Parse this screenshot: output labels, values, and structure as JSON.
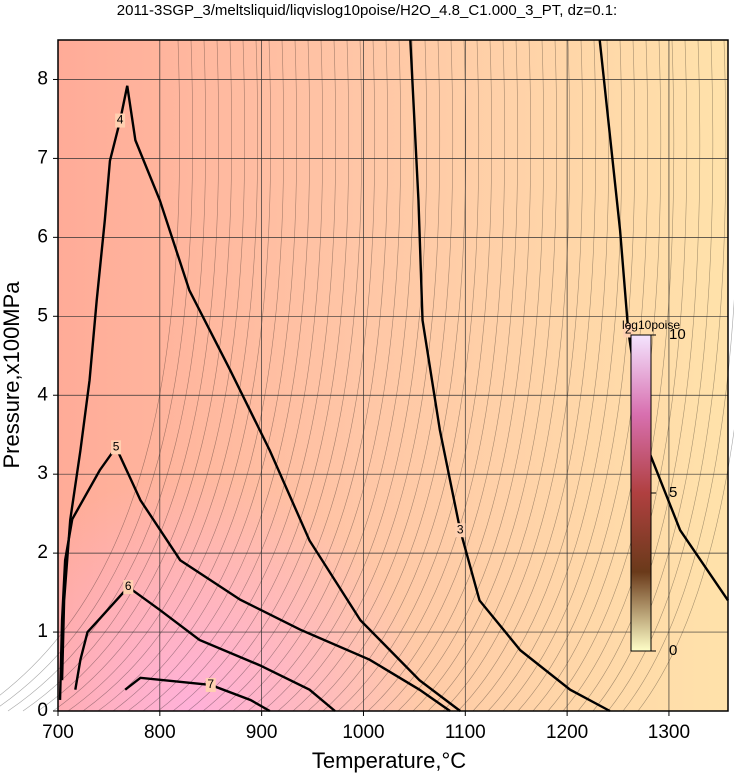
{
  "chart_data": {
    "type": "contour",
    "title": "2011-3SGP_3/meltsliquid/liqvislog10poise/H2O_4.8_C1.000_3_PT, dz=0.1:",
    "xlabel": "Temperature,°C",
    "ylabel": "Pressure,x100MPa",
    "xlim": [
      700,
      1358
    ],
    "ylim": [
      0,
      8.5
    ],
    "xticks": [
      700,
      800,
      900,
      1000,
      1100,
      1200,
      1300
    ],
    "yticks": [
      0,
      1,
      2,
      3,
      4,
      5,
      6,
      7,
      8
    ],
    "grid": true,
    "line_color": "#000000",
    "contours": [
      {
        "level": 2,
        "x": [
          1232,
          1252,
          1260,
          1276,
          1311,
          1358
        ],
        "y": [
          8.5,
          6.09,
          4.82,
          3.43,
          2.29,
          1.4
        ]
      },
      {
        "level": 3,
        "x": [
          1046,
          1054,
          1058,
          1075,
          1095,
          1114,
          1154,
          1203,
          1242
        ],
        "y": [
          8.5,
          6.47,
          4.95,
          3.56,
          2.29,
          1.4,
          0.77,
          0.27,
          0
        ]
      },
      {
        "level": 4,
        "x": [
          704,
          706,
          712,
          722,
          731,
          738,
          746,
          751,
          761,
          768,
          776,
          800,
          829,
          869,
          908,
          947,
          997,
          1055,
          1095
        ],
        "y": [
          0.39,
          1.4,
          2.42,
          3.3,
          4.19,
          5.2,
          6.22,
          6.97,
          7.48,
          7.92,
          7.23,
          6.47,
          5.33,
          4.32,
          3.3,
          2.16,
          1.15,
          0.39,
          0
        ]
      },
      {
        "level": 5,
        "x": [
          702,
          704,
          707,
          714,
          741,
          757,
          781,
          820,
          879,
          938,
          1006,
          1055,
          1085
        ],
        "y": [
          0.14,
          1.15,
          1.91,
          2.43,
          3.05,
          3.34,
          2.67,
          1.91,
          1.41,
          1.03,
          0.65,
          0.27,
          0
        ]
      },
      {
        "level": 6,
        "x": [
          717,
          722,
          729,
          741,
          769,
          800,
          839,
          898,
          947,
          972
        ],
        "y": [
          0.27,
          0.65,
          1.0,
          1.17,
          1.57,
          1.28,
          0.9,
          0.58,
          0.27,
          0
        ]
      },
      {
        "level": 7,
        "x": [
          766,
          781,
          850,
          889,
          908
        ],
        "y": [
          0.27,
          0.42,
          0.33,
          0.14,
          0
        ]
      }
    ],
    "colorbar": {
      "label": "log10poise",
      "lim": [
        0,
        10
      ],
      "ticks": [
        0,
        5,
        10
      ],
      "colors": [
        "#ffffc8",
        "#6a3a1a",
        "#b04040",
        "#d870b0",
        "#f4e4ff"
      ]
    }
  }
}
